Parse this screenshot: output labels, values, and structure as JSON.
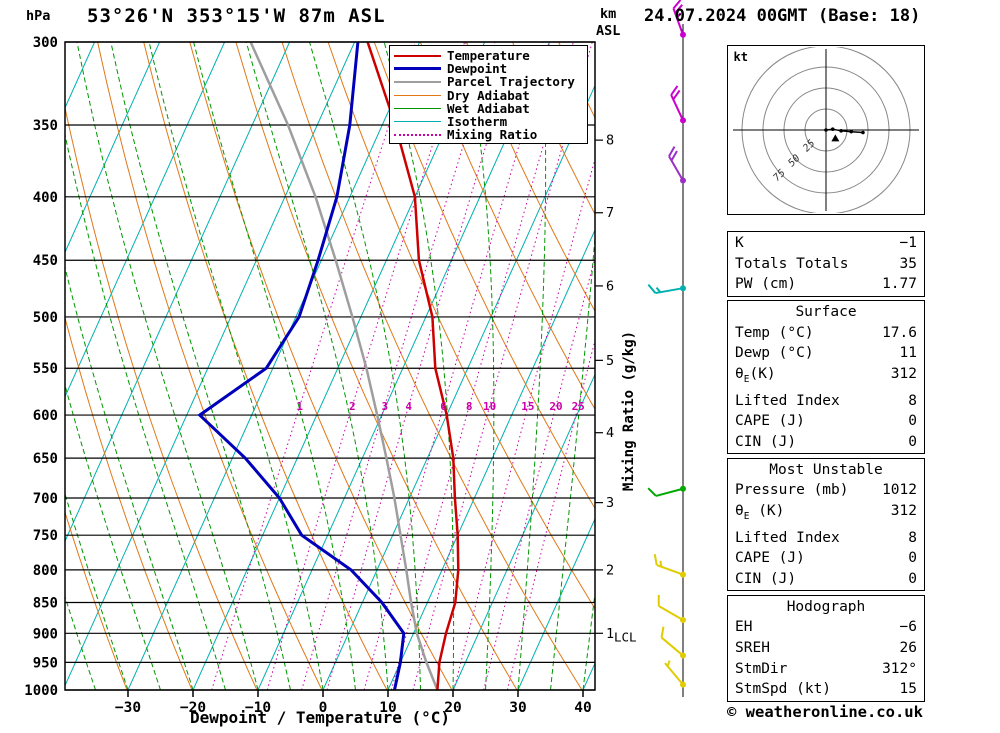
{
  "header": {
    "station": "53°26'N 353°15'W 87m ASL",
    "datetime": "24.07.2024 00GMT (Base: 18)"
  },
  "axes": {
    "pressure_unit": "hPa",
    "pressure_ticks": [
      300,
      350,
      400,
      450,
      500,
      550,
      600,
      650,
      700,
      750,
      800,
      850,
      900,
      950,
      1000
    ],
    "temp_ticks": [
      -30,
      -20,
      -10,
      0,
      10,
      20,
      30,
      40
    ],
    "x_label": "Dewpoint / Temperature (°C)",
    "km_label_top": "km",
    "km_label_bottom": "ASL",
    "lcl_label": "LCL",
    "mixing_ratio_label": "Mixing Ratio (g/kg)",
    "mixing_ratio_values": [
      1,
      2,
      3,
      4,
      6,
      8,
      10,
      15,
      20,
      25
    ]
  },
  "legend": {
    "items": [
      {
        "label": "Temperature",
        "color": "#cc0000",
        "style": "solid",
        "weight": 2
      },
      {
        "label": "Dewpoint",
        "color": "#0000bb",
        "style": "solid",
        "weight": 3
      },
      {
        "label": "Parcel Trajectory",
        "color": "#9e9e9e",
        "style": "solid",
        "weight": 2
      },
      {
        "label": "Dry Adiabat",
        "color": "#e07818",
        "style": "solid",
        "weight": 1
      },
      {
        "label": "Wet Adiabat",
        "color": "#009600",
        "style": "solid",
        "weight": 1
      },
      {
        "label": "Isotherm",
        "color": "#00b0b0",
        "style": "solid",
        "weight": 1
      },
      {
        "label": "Mixing Ratio",
        "color": "#cc00aa",
        "style": "dotted",
        "weight": 2
      }
    ]
  },
  "chart_data": {
    "type": "skewt-log-p-sounding",
    "pressure_range_hPa": [
      300,
      1000
    ],
    "temp_axis_range_C": [
      -40,
      40
    ],
    "lcl_pressure": 905,
    "mixing_ratio_label_pressure": 590,
    "temperature_profile": [
      {
        "p": 1000,
        "t": 17.6
      },
      {
        "p": 950,
        "t": 16
      },
      {
        "p": 900,
        "t": 15
      },
      {
        "p": 850,
        "t": 14.3
      },
      {
        "p": 800,
        "t": 12.5
      },
      {
        "p": 750,
        "t": 10
      },
      {
        "p": 700,
        "t": 7
      },
      {
        "p": 650,
        "t": 4
      },
      {
        "p": 600,
        "t": 0
      },
      {
        "p": 550,
        "t": -5
      },
      {
        "p": 500,
        "t": -9
      },
      {
        "p": 450,
        "t": -15
      },
      {
        "p": 400,
        "t": -20
      },
      {
        "p": 350,
        "t": -28
      },
      {
        "p": 300,
        "t": -38
      }
    ],
    "dewpoint_profile": [
      {
        "p": 1000,
        "t": 11
      },
      {
        "p": 950,
        "t": 10
      },
      {
        "p": 900,
        "t": 8.5
      },
      {
        "p": 850,
        "t": 3
      },
      {
        "p": 800,
        "t": -4
      },
      {
        "p": 750,
        "t": -14
      },
      {
        "p": 700,
        "t": -20
      },
      {
        "p": 650,
        "t": -28
      },
      {
        "p": 600,
        "t": -38
      },
      {
        "p": 550,
        "t": -31
      },
      {
        "p": 500,
        "t": -29.5
      },
      {
        "p": 450,
        "t": -30.5
      },
      {
        "p": 400,
        "t": -32
      },
      {
        "p": 350,
        "t": -35
      },
      {
        "p": 300,
        "t": -39.5
      }
    ],
    "parcel_profile": [
      {
        "p": 1000,
        "t": 17.6
      },
      {
        "p": 950,
        "t": 14
      },
      {
        "p": 900,
        "t": 10.5
      },
      {
        "p": 850,
        "t": 7.5
      },
      {
        "p": 800,
        "t": 4.5
      },
      {
        "p": 750,
        "t": 1.2
      },
      {
        "p": 700,
        "t": -2.3
      },
      {
        "p": 650,
        "t": -6.3
      },
      {
        "p": 600,
        "t": -10.7
      },
      {
        "p": 550,
        "t": -15.6
      },
      {
        "p": 500,
        "t": -21.3
      },
      {
        "p": 450,
        "t": -27.8
      },
      {
        "p": 400,
        "t": -35.3
      },
      {
        "p": 350,
        "t": -44.5
      },
      {
        "p": 300,
        "t": -56
      }
    ],
    "km_ticks": [
      {
        "km": 1,
        "p": 900
      },
      {
        "km": 2,
        "p": 800
      },
      {
        "km": 3,
        "p": 706
      },
      {
        "km": 4,
        "p": 620
      },
      {
        "km": 5,
        "p": 542
      },
      {
        "km": 6,
        "p": 472
      },
      {
        "km": 7,
        "p": 412
      },
      {
        "km": 8,
        "p": 360
      }
    ],
    "wind_barbs": [
      {
        "p": 296,
        "dir": 340,
        "speed": 25,
        "color": "#cc00cc"
      },
      {
        "p": 347,
        "dir": 335,
        "speed": 20,
        "color": "#cc00cc"
      },
      {
        "p": 388,
        "dir": 330,
        "speed": 20,
        "color": "#9b30c8"
      },
      {
        "p": 474,
        "dir": 260,
        "speed": 15,
        "color": "#00b0b0"
      },
      {
        "p": 688,
        "dir": 255,
        "speed": 10,
        "color": "#00a800"
      },
      {
        "p": 807,
        "dir": 290,
        "speed": 15,
        "color": "#e0cc00"
      },
      {
        "p": 878,
        "dir": 300,
        "speed": 10,
        "color": "#e0cc00"
      },
      {
        "p": 938,
        "dir": 310,
        "speed": 10,
        "color": "#e0cc00"
      },
      {
        "p": 990,
        "dir": 320,
        "speed": 5,
        "color": "#e0cc00"
      }
    ]
  },
  "hodograph": {
    "unit_label": "kt",
    "ring_spacing_kt": 25,
    "ring_labels": [
      {
        "value": "25",
        "r_kt": 25
      },
      {
        "value": "50",
        "r_kt": 50
      },
      {
        "value": "75",
        "r_kt": 75
      }
    ],
    "trace_kt": [
      {
        "u": 0,
        "v": 0
      },
      {
        "u": 8,
        "v": -1
      },
      {
        "u": 18,
        "v": 1
      },
      {
        "u": 30,
        "v": 2
      },
      {
        "u": 44,
        "v": 3
      }
    ],
    "storm_motion": {
      "dir_deg": 312,
      "speed_kt": 15
    }
  },
  "tables": [
    {
      "name": "indices",
      "header": null,
      "rows": [
        {
          "label": "K",
          "value": "−1"
        },
        {
          "label": "Totals Totals",
          "value": "35"
        },
        {
          "label": "PW (cm)",
          "value": "1.77"
        }
      ]
    },
    {
      "name": "surface",
      "header": "Surface",
      "rows": [
        {
          "label": "Temp (°C)",
          "value": "17.6"
        },
        {
          "label": "Dewp (°C)",
          "value": "11"
        },
        {
          "label": "θ~E~(K)",
          "value": "312"
        },
        {
          "label": "Lifted Index",
          "value": "8"
        },
        {
          "label": "CAPE (J)",
          "value": "0"
        },
        {
          "label": "CIN (J)",
          "value": "0"
        }
      ]
    },
    {
      "name": "most-unstable",
      "header": "Most Unstable",
      "rows": [
        {
          "label": "Pressure (mb)",
          "value": "1012"
        },
        {
          "label": "θ~E~ (K)",
          "value": "312"
        },
        {
          "label": "Lifted Index",
          "value": "8"
        },
        {
          "label": "CAPE (J)",
          "value": "0"
        },
        {
          "label": "CIN (J)",
          "value": "0"
        }
      ]
    },
    {
      "name": "hodograph-stats",
      "header": "Hodograph",
      "rows": [
        {
          "label": "EH",
          "value": "−6"
        },
        {
          "label": "SREH",
          "value": "26"
        },
        {
          "label": "StmDir",
          "value": "312°"
        },
        {
          "label": "StmSpd (kt)",
          "value": "15"
        }
      ]
    }
  ],
  "copyright": "© weatheronline.co.uk",
  "colors": {
    "temperature": "#cc0000",
    "dewpoint": "#0000bb",
    "parcel": "#9e9e9e",
    "dry_adiabat": "#e07818",
    "wet_adiabat": "#009600",
    "isotherm": "#00b0b0",
    "mixing_ratio": "#cc00aa",
    "grid": "#000000"
  }
}
